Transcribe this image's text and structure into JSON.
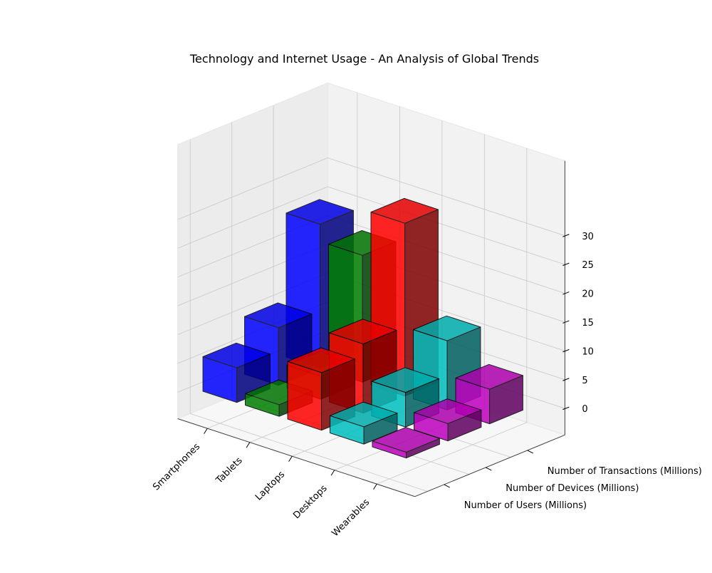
{
  "chart_data": {
    "type": "bar3d",
    "title": "Technology and Internet Usage - An Analysis of Global Trends",
    "categories": [
      "Smartphones",
      "Tablets",
      "Laptops",
      "Desktops",
      "Wearables"
    ],
    "series": [
      {
        "name": "Number of Users (Millions)",
        "values": [
          6,
          2,
          10,
          3,
          1
        ]
      },
      {
        "name": "Number of Devices (Millions)",
        "values": [
          10,
          4,
          12,
          6,
          3
        ]
      },
      {
        "name": "Number of Transactions (Millions)",
        "values": [
          25,
          22,
          30,
          12,
          6
        ]
      }
    ],
    "category_colors": [
      "#0000ff",
      "#008000",
      "#ff0000",
      "#00bfbf",
      "#bf00bf"
    ],
    "zlim": [
      0,
      30
    ],
    "zticks": [
      0,
      5,
      10,
      15,
      20,
      25,
      30
    ],
    "grid": true
  }
}
